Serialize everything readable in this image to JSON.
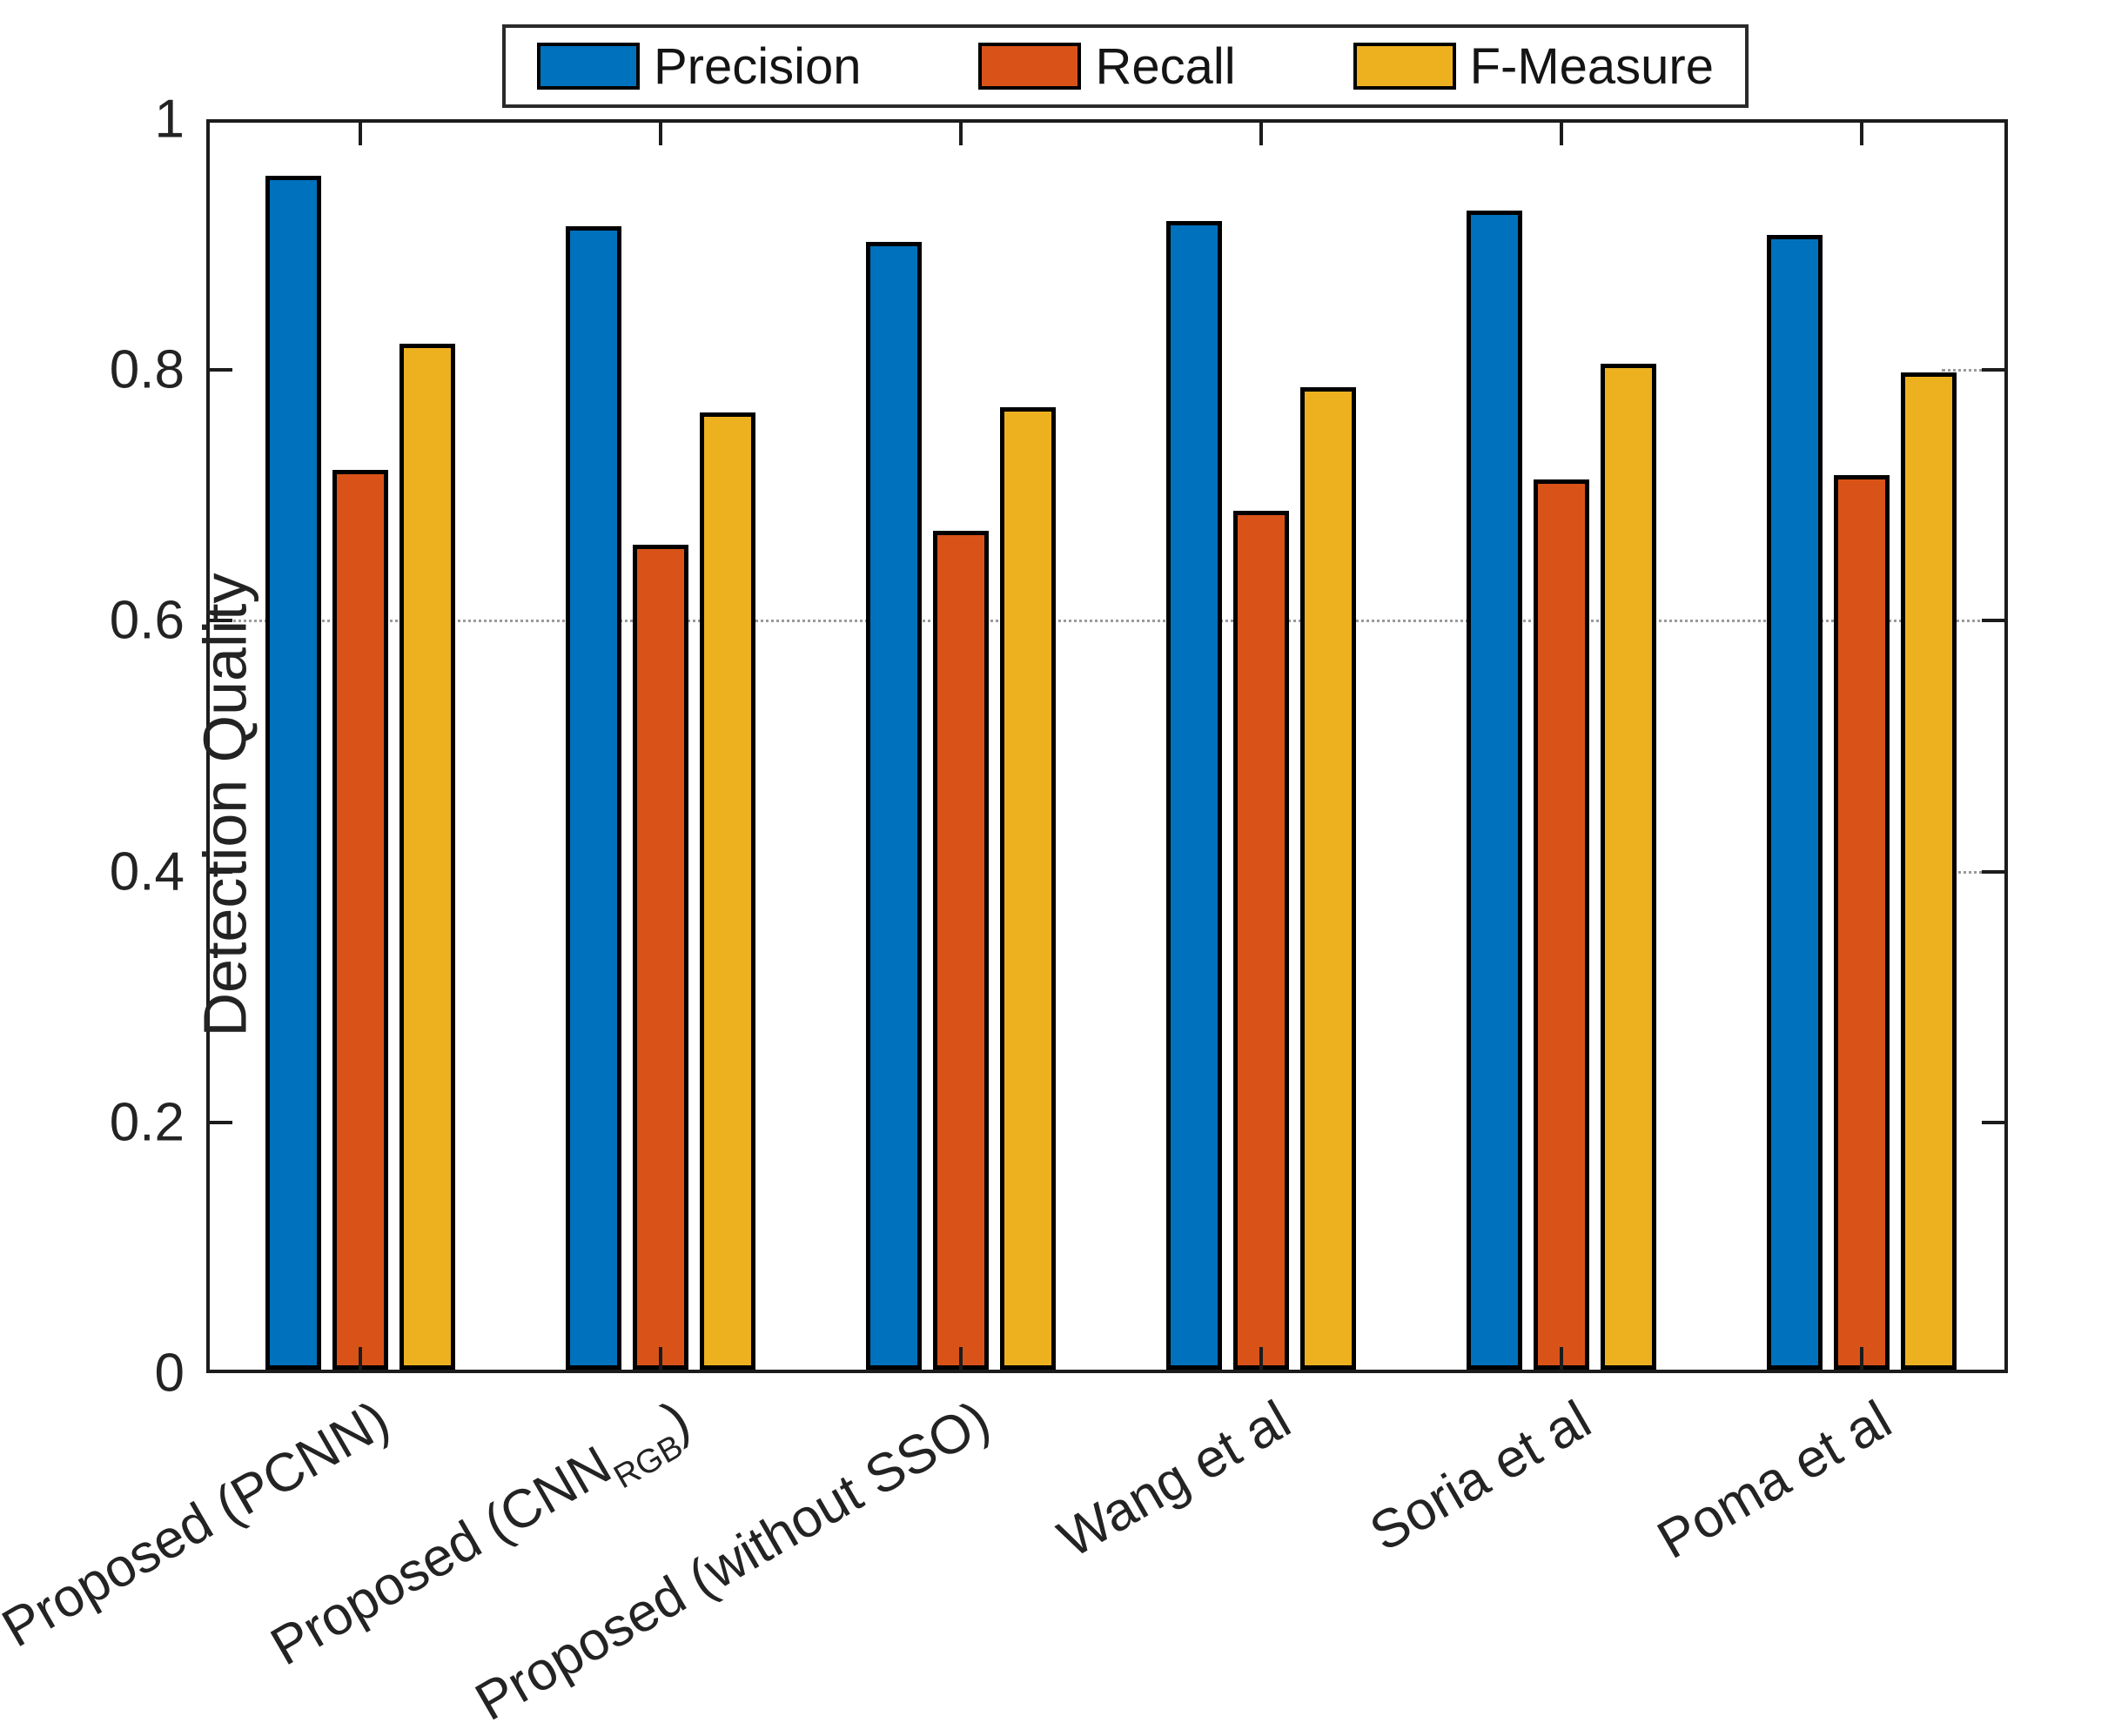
{
  "figure": {
    "background": "#ffffff",
    "axis_color": "#1c1c1c",
    "text_color": "#232323",
    "grid_color": "#9a9a9a"
  },
  "legend": {
    "position": "top",
    "items": [
      {
        "label": "Precision",
        "color": "#0072BD"
      },
      {
        "label": "Recall",
        "color": "#D95319"
      },
      {
        "label": "F-Measure",
        "color": "#EDB120"
      }
    ]
  },
  "chart_data": {
    "type": "bar",
    "title": "",
    "xlabel": "",
    "ylabel": "Detection Quality",
    "ylim": [
      0,
      1
    ],
    "ytick_values": [
      0,
      0.2,
      0.4,
      0.6,
      0.8,
      1
    ],
    "ytick_labels": [
      "0",
      "0.2",
      "0.4",
      "0.6",
      "0.8",
      "1"
    ],
    "grid": {
      "full_lines": [
        0.6
      ],
      "right_stub_lines": [
        0.8,
        0.4
      ],
      "style": "dotted"
    },
    "legend_position": "top",
    "categories": [
      "Proposed (PCNN)",
      "Proposed (CNN_RGB)",
      "Proposed (without SSO)",
      "Wang et al",
      "Soria et al",
      "Poma et al"
    ],
    "category_segments": [
      [
        {
          "t": "Proposed (PCNN)"
        }
      ],
      [
        {
          "t": "Proposed (CNN"
        },
        {
          "t": "RGB",
          "sub": true
        },
        {
          "t": ")"
        }
      ],
      [
        {
          "t": "Proposed (without SSO)"
        }
      ],
      [
        {
          "t": "Wang et al"
        }
      ],
      [
        {
          "t": "Soria et al"
        }
      ],
      [
        {
          "t": "Poma et al"
        }
      ]
    ],
    "series": [
      {
        "name": "Precision",
        "color": "#0072BD",
        "values": [
          0.955,
          0.915,
          0.902,
          0.919,
          0.927,
          0.908
        ]
      },
      {
        "name": "Recall",
        "color": "#D95319",
        "values": [
          0.72,
          0.661,
          0.672,
          0.688,
          0.713,
          0.716
        ]
      },
      {
        "name": "F-Measure",
        "color": "#EDB120",
        "values": [
          0.821,
          0.766,
          0.77,
          0.786,
          0.805,
          0.798
        ]
      }
    ]
  }
}
